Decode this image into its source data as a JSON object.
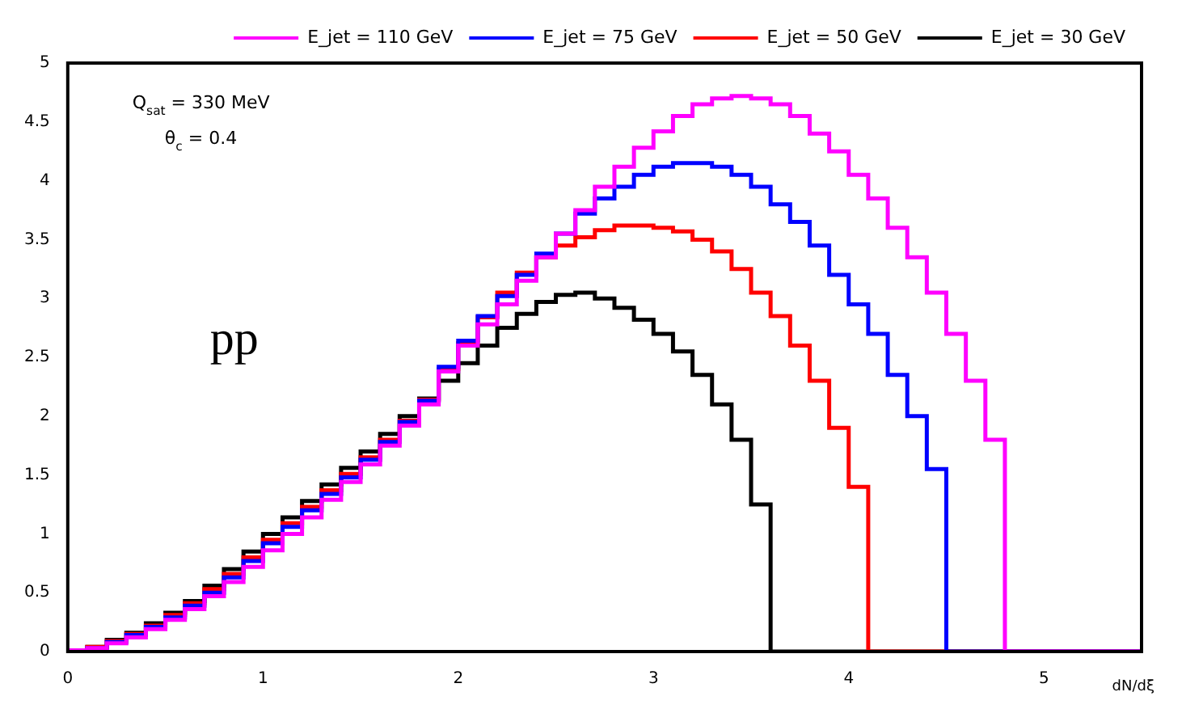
{
  "chart_data": {
    "type": "histogram",
    "xlabel": "dN/dξ",
    "annotations": [
      "Q$_{sat}$ = 330 MeV",
      "θ$_{c}$ = 0.4",
      "pp"
    ],
    "bins": [
      0,
      0.1,
      0.2,
      0.3,
      0.4,
      0.5,
      0.6,
      0.7,
      0.8,
      0.9,
      1,
      1.1,
      1.2,
      1.3,
      1.4,
      1.5,
      1.6,
      1.7,
      1.8,
      1.9,
      2,
      2.1,
      2.2,
      2.3,
      2.4,
      2.5,
      2.6,
      2.7,
      2.8,
      2.9,
      3,
      3.1,
      3.2,
      3.3,
      3.4,
      3.5,
      3.6,
      3.7,
      3.8,
      3.9,
      4,
      4.1,
      4.2,
      4.3,
      4.4,
      4.5,
      4.6,
      4.7,
      4.8,
      4.9,
      5,
      5.1,
      5.2,
      5.3,
      5.4,
      5.5
    ],
    "series": [
      {
        "name": "E_jet = 110 GeV",
        "color": "#ff00ff",
        "values": [
          0.01,
          0.03,
          0.07,
          0.12,
          0.19,
          0.27,
          0.36,
          0.47,
          0.59,
          0.72,
          0.86,
          1.0,
          1.14,
          1.29,
          1.44,
          1.59,
          1.75,
          1.92,
          2.1,
          2.38,
          2.6,
          2.78,
          2.95,
          3.15,
          3.35,
          3.55,
          3.75,
          3.95,
          4.12,
          4.28,
          4.42,
          4.55,
          4.65,
          4.7,
          4.72,
          4.7,
          4.65,
          4.55,
          4.4,
          4.25,
          4.05,
          3.85,
          3.6,
          3.35,
          3.05,
          2.7,
          2.3,
          1.8,
          0,
          0,
          0,
          0,
          0,
          0,
          0
        ]
      },
      {
        "name": "E_jet = 75 GeV",
        "color": "#0000ff",
        "values": [
          0.01,
          0.03,
          0.08,
          0.14,
          0.21,
          0.29,
          0.39,
          0.5,
          0.63,
          0.77,
          0.92,
          1.06,
          1.2,
          1.34,
          1.48,
          1.63,
          1.78,
          1.95,
          2.13,
          2.42,
          2.64,
          2.85,
          3.02,
          3.2,
          3.38,
          3.55,
          3.72,
          3.85,
          3.95,
          4.05,
          4.12,
          4.15,
          4.15,
          4.12,
          4.05,
          3.95,
          3.8,
          3.65,
          3.45,
          3.2,
          2.95,
          2.7,
          2.35,
          2.0,
          1.55,
          0,
          0,
          0,
          0,
          0,
          0,
          0,
          0,
          0,
          0
        ]
      },
      {
        "name": "E_jet = 50 GeV",
        "color": "#ff0000",
        "values": [
          0.01,
          0.04,
          0.09,
          0.15,
          0.22,
          0.31,
          0.41,
          0.53,
          0.66,
          0.8,
          0.95,
          1.09,
          1.23,
          1.37,
          1.51,
          1.65,
          1.8,
          1.96,
          2.14,
          2.4,
          2.62,
          2.84,
          3.05,
          3.22,
          3.35,
          3.45,
          3.52,
          3.58,
          3.62,
          3.62,
          3.6,
          3.57,
          3.5,
          3.4,
          3.25,
          3.05,
          2.85,
          2.6,
          2.3,
          1.9,
          1.4,
          0,
          0,
          0,
          0,
          0,
          0,
          0,
          0,
          0,
          0,
          0,
          0,
          0,
          0
        ]
      },
      {
        "name": "E_jet = 30 GeV",
        "color": "#000000",
        "values": [
          0.01,
          0.04,
          0.1,
          0.16,
          0.24,
          0.33,
          0.43,
          0.56,
          0.7,
          0.85,
          1.0,
          1.14,
          1.28,
          1.42,
          1.56,
          1.7,
          1.85,
          2.0,
          2.15,
          2.3,
          2.45,
          2.6,
          2.75,
          2.87,
          2.97,
          3.03,
          3.05,
          3.0,
          2.92,
          2.82,
          2.7,
          2.55,
          2.35,
          2.1,
          1.8,
          1.25,
          0,
          0,
          0,
          0,
          0,
          0,
          0,
          0,
          0,
          0,
          0,
          0,
          0,
          0,
          0,
          0,
          0,
          0,
          0
        ]
      }
    ],
    "xlim": [
      0,
      5.5
    ],
    "ylim": [
      0,
      5
    ],
    "xticks": [
      0,
      1,
      2,
      3,
      4,
      5
    ],
    "yticks": [
      0,
      0.5,
      1,
      1.5,
      2,
      2.5,
      3,
      3.5,
      4,
      4.5,
      5
    ],
    "grid": false,
    "legend": "top right"
  }
}
